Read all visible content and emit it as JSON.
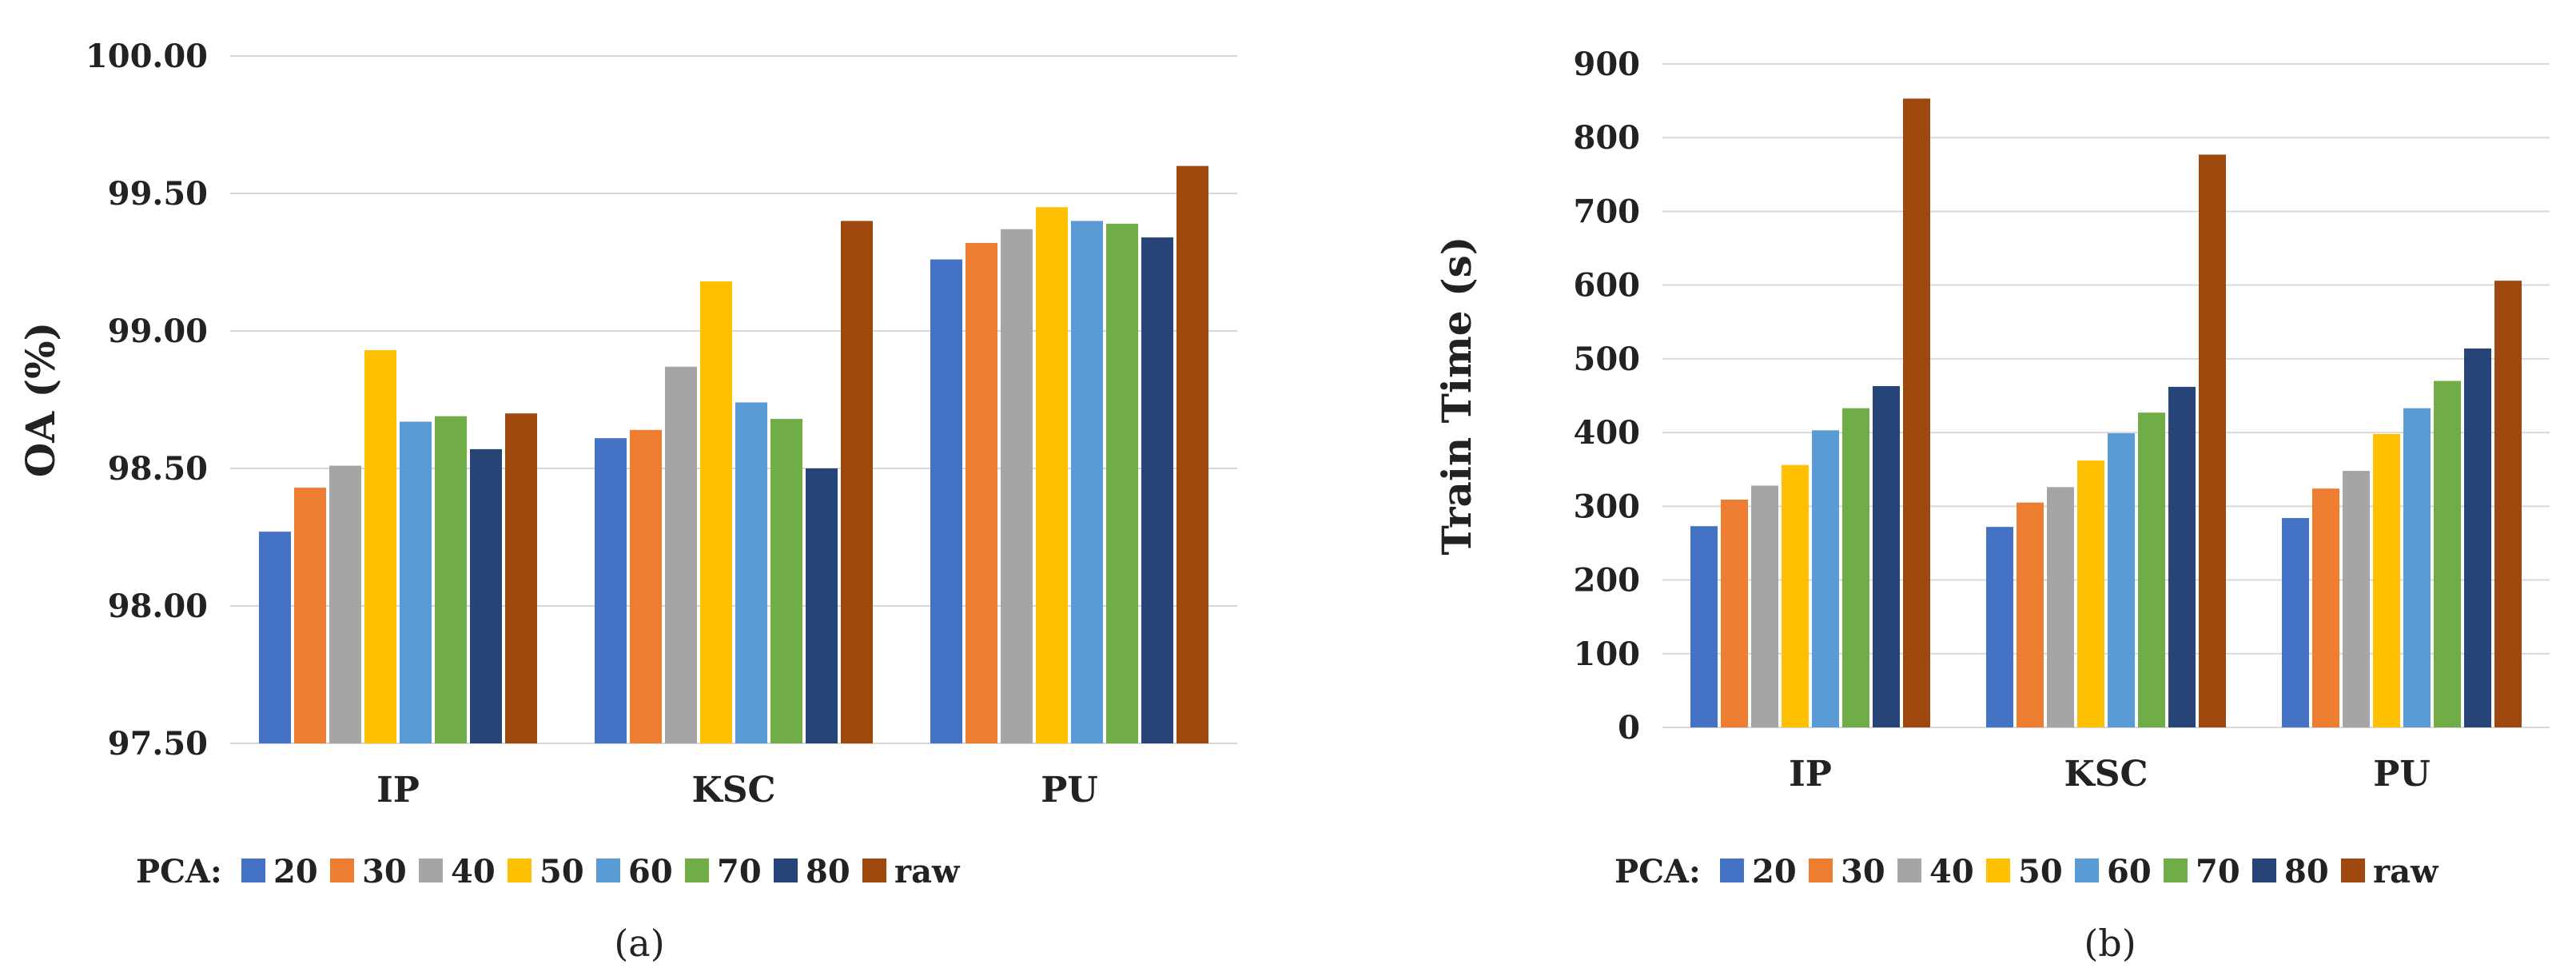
{
  "chart_data": [
    {
      "type": "bar",
      "title": "",
      "caption": "(a)",
      "xlabel": "",
      "ylabel": "OA (%)",
      "ylim": [
        97.5,
        100.0
      ],
      "yticks": [
        "97.50",
        "98.00",
        "98.50",
        "99.00",
        "99.50",
        "100.00"
      ],
      "grid": true,
      "categories": [
        "IP",
        "KSC",
        "PU"
      ],
      "legend_title": "PCA:",
      "legend_position": "bottom",
      "series": [
        {
          "name": "20",
          "color": "#4472C4",
          "values": [
            98.27,
            98.61,
            99.26
          ]
        },
        {
          "name": "30",
          "color": "#ED7D31",
          "values": [
            98.43,
            98.64,
            99.32
          ]
        },
        {
          "name": "40",
          "color": "#A5A5A5",
          "values": [
            98.51,
            98.87,
            99.37
          ]
        },
        {
          "name": "50",
          "color": "#FFC000",
          "values": [
            98.93,
            99.18,
            99.45
          ]
        },
        {
          "name": "60",
          "color": "#5B9BD5",
          "values": [
            98.67,
            98.74,
            99.4
          ]
        },
        {
          "name": "70",
          "color": "#70AD47",
          "values": [
            98.69,
            98.68,
            99.39
          ]
        },
        {
          "name": "80",
          "color": "#264478",
          "values": [
            98.57,
            98.5,
            99.34
          ]
        },
        {
          "name": "raw",
          "color": "#9E480E",
          "values": [
            98.7,
            99.4,
            99.6
          ]
        }
      ]
    },
    {
      "type": "bar",
      "title": "",
      "caption": "(b)",
      "xlabel": "",
      "ylabel": "Train Time (s)",
      "ylim": [
        0,
        900
      ],
      "yticks": [
        "0",
        "100",
        "200",
        "300",
        "400",
        "500",
        "600",
        "700",
        "800",
        "900"
      ],
      "grid": true,
      "categories": [
        "IP",
        "KSC",
        "PU"
      ],
      "legend_title": "PCA:",
      "legend_position": "bottom",
      "series": [
        {
          "name": "20",
          "color": "#4472C4",
          "values": [
            273,
            272,
            284
          ]
        },
        {
          "name": "30",
          "color": "#ED7D31",
          "values": [
            309,
            305,
            324
          ]
        },
        {
          "name": "40",
          "color": "#A5A5A5",
          "values": [
            328,
            326,
            348
          ]
        },
        {
          "name": "50",
          "color": "#FFC000",
          "values": [
            356,
            362,
            398
          ]
        },
        {
          "name": "60",
          "color": "#5B9BD5",
          "values": [
            403,
            399,
            433
          ]
        },
        {
          "name": "70",
          "color": "#70AD47",
          "values": [
            433,
            427,
            470
          ]
        },
        {
          "name": "80",
          "color": "#264478",
          "values": [
            463,
            462,
            514
          ]
        },
        {
          "name": "raw",
          "color": "#9E480E",
          "values": [
            853,
            777,
            606
          ]
        }
      ]
    }
  ]
}
